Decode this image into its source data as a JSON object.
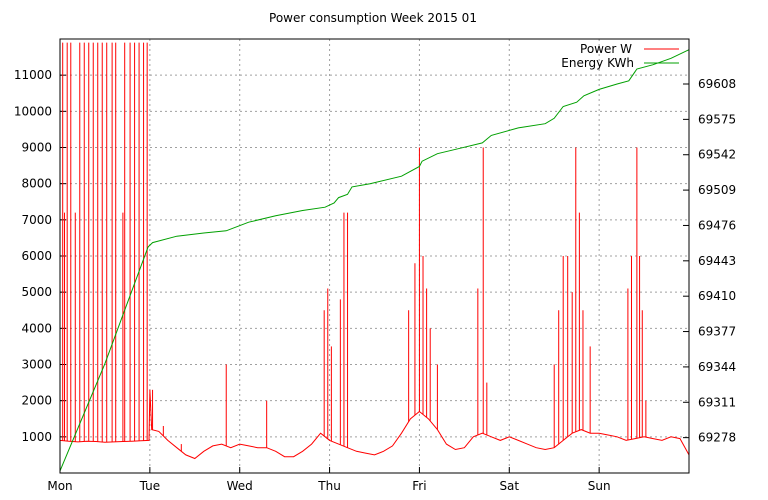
{
  "chart_data": {
    "type": "line",
    "title": "Power consumption Week 2015 01",
    "xlabel": "",
    "ylabel": "",
    "grid": true,
    "legend_position": "top-right",
    "x_tick_labels": [
      "Mon",
      "Tue",
      "Wed",
      "Thu",
      "Fri",
      "Sat",
      "Sun"
    ],
    "x_range_days": [
      0,
      7
    ],
    "ylim_left": [
      0,
      12000
    ],
    "ylim_right": [
      69245,
      69650
    ],
    "y_ticks_left": [
      1000,
      2000,
      3000,
      4000,
      5000,
      6000,
      7000,
      8000,
      9000,
      10000,
      11000
    ],
    "y_ticks_right": [
      69278,
      69311,
      69344,
      69377,
      69410,
      69443,
      69476,
      69509,
      69542,
      69575,
      69608
    ],
    "series": [
      {
        "name": "Power W",
        "axis": "left",
        "color": "#ff0000",
        "baseline": [
          [
            0,
            900
          ],
          [
            0.1,
            880
          ],
          [
            0.2,
            860
          ],
          [
            0.3,
            880
          ],
          [
            0.4,
            870
          ],
          [
            0.5,
            850
          ],
          [
            0.6,
            860
          ],
          [
            0.7,
            870
          ],
          [
            0.8,
            880
          ],
          [
            0.9,
            890
          ],
          [
            0.99,
            900
          ],
          [
            1.0,
            2300
          ],
          [
            1.02,
            1200
          ],
          [
            1.1,
            1150
          ],
          [
            1.2,
            900
          ],
          [
            1.3,
            700
          ],
          [
            1.4,
            500
          ],
          [
            1.5,
            400
          ],
          [
            1.6,
            600
          ],
          [
            1.7,
            750
          ],
          [
            1.8,
            800
          ],
          [
            1.9,
            700
          ],
          [
            2.0,
            800
          ],
          [
            2.1,
            750
          ],
          [
            2.2,
            700
          ],
          [
            2.3,
            700
          ],
          [
            2.4,
            600
          ],
          [
            2.5,
            450
          ],
          [
            2.6,
            450
          ],
          [
            2.7,
            600
          ],
          [
            2.8,
            800
          ],
          [
            2.9,
            1100
          ],
          [
            3.0,
            900
          ],
          [
            3.1,
            800
          ],
          [
            3.2,
            700
          ],
          [
            3.3,
            600
          ],
          [
            3.4,
            550
          ],
          [
            3.5,
            500
          ],
          [
            3.6,
            600
          ],
          [
            3.7,
            750
          ],
          [
            3.8,
            1100
          ],
          [
            3.9,
            1500
          ],
          [
            4.0,
            1700
          ],
          [
            4.1,
            1500
          ],
          [
            4.2,
            1200
          ],
          [
            4.3,
            800
          ],
          [
            4.4,
            650
          ],
          [
            4.5,
            700
          ],
          [
            4.6,
            1000
          ],
          [
            4.7,
            1100
          ],
          [
            4.8,
            1000
          ],
          [
            4.9,
            900
          ],
          [
            5.0,
            1000
          ],
          [
            5.1,
            900
          ],
          [
            5.2,
            800
          ],
          [
            5.3,
            700
          ],
          [
            5.4,
            650
          ],
          [
            5.5,
            700
          ],
          [
            5.6,
            900
          ],
          [
            5.7,
            1100
          ],
          [
            5.8,
            1200
          ],
          [
            5.9,
            1100
          ],
          [
            6.0,
            1100
          ],
          [
            6.1,
            1050
          ],
          [
            6.2,
            1000
          ],
          [
            6.3,
            900
          ],
          [
            6.4,
            950
          ],
          [
            6.5,
            1000
          ],
          [
            6.6,
            950
          ],
          [
            6.7,
            900
          ],
          [
            6.8,
            1000
          ],
          [
            6.9,
            950
          ],
          [
            7.0,
            500
          ]
        ],
        "spikes": [
          [
            0.03,
            11900
          ],
          [
            0.05,
            7200
          ],
          [
            0.08,
            11900
          ],
          [
            0.12,
            11900
          ],
          [
            0.17,
            7200
          ],
          [
            0.22,
            11900
          ],
          [
            0.27,
            11900
          ],
          [
            0.32,
            11900
          ],
          [
            0.37,
            11900
          ],
          [
            0.42,
            11900
          ],
          [
            0.47,
            11900
          ],
          [
            0.52,
            11900
          ],
          [
            0.58,
            11900
          ],
          [
            0.62,
            11900
          ],
          [
            0.7,
            7200
          ],
          [
            0.72,
            11900
          ],
          [
            0.78,
            11900
          ],
          [
            0.83,
            11900
          ],
          [
            0.88,
            11900
          ],
          [
            0.93,
            11900
          ],
          [
            0.97,
            11900
          ],
          [
            1.03,
            2300
          ],
          [
            1.15,
            1300
          ],
          [
            1.35,
            800
          ],
          [
            1.85,
            3000
          ],
          [
            2.3,
            2000
          ],
          [
            2.94,
            4500
          ],
          [
            2.98,
            5100
          ],
          [
            3.02,
            3500
          ],
          [
            3.12,
            4800
          ],
          [
            3.16,
            7200
          ],
          [
            3.2,
            7200
          ],
          [
            3.88,
            4500
          ],
          [
            3.95,
            5800
          ],
          [
            4.0,
            9000
          ],
          [
            4.04,
            6000
          ],
          [
            4.08,
            5100
          ],
          [
            4.12,
            4000
          ],
          [
            4.2,
            3000
          ],
          [
            4.65,
            5100
          ],
          [
            4.71,
            9000
          ],
          [
            4.75,
            2500
          ],
          [
            5.5,
            3000
          ],
          [
            5.55,
            4500
          ],
          [
            5.6,
            6000
          ],
          [
            5.65,
            6000
          ],
          [
            5.7,
            5000
          ],
          [
            5.74,
            9000
          ],
          [
            5.78,
            7200
          ],
          [
            5.82,
            4500
          ],
          [
            5.9,
            3500
          ],
          [
            6.32,
            5100
          ],
          [
            6.36,
            6000
          ],
          [
            6.42,
            9000
          ],
          [
            6.45,
            6000
          ],
          [
            6.48,
            4500
          ],
          [
            6.52,
            2000
          ]
        ]
      },
      {
        "name": "Energy KWh",
        "axis": "right",
        "color": "#00a000",
        "points": [
          [
            0,
            69247
          ],
          [
            0.5,
            69347
          ],
          [
            0.98,
            69456
          ],
          [
            1.03,
            69460
          ],
          [
            1.3,
            69466
          ],
          [
            1.6,
            69469
          ],
          [
            1.85,
            69471
          ],
          [
            2.1,
            69479
          ],
          [
            2.4,
            69485
          ],
          [
            2.7,
            69490
          ],
          [
            2.95,
            69493
          ],
          [
            3.05,
            69497
          ],
          [
            3.1,
            69502
          ],
          [
            3.2,
            69505
          ],
          [
            3.25,
            69512
          ],
          [
            3.45,
            69515
          ],
          [
            3.8,
            69522
          ],
          [
            4.0,
            69531
          ],
          [
            4.03,
            69536
          ],
          [
            4.2,
            69543
          ],
          [
            4.45,
            69548
          ],
          [
            4.7,
            69553
          ],
          [
            4.8,
            69560
          ],
          [
            5.1,
            69567
          ],
          [
            5.4,
            69571
          ],
          [
            5.5,
            69576
          ],
          [
            5.6,
            69587
          ],
          [
            5.75,
            69591
          ],
          [
            5.83,
            69597
          ],
          [
            6.0,
            69603
          ],
          [
            6.2,
            69608
          ],
          [
            6.33,
            69611
          ],
          [
            6.42,
            69622
          ],
          [
            6.6,
            69626
          ],
          [
            6.8,
            69632
          ],
          [
            7.0,
            69640
          ]
        ]
      }
    ]
  }
}
